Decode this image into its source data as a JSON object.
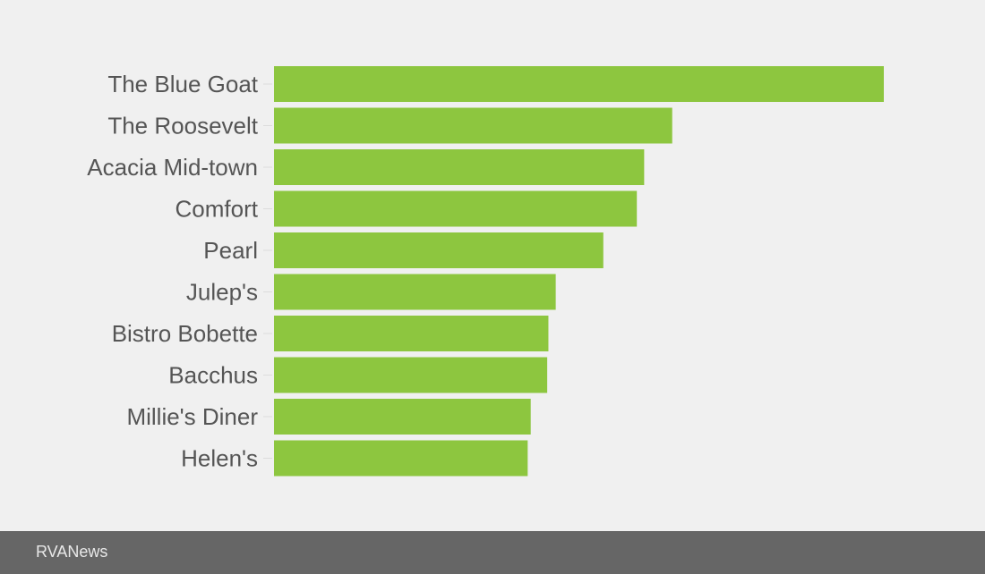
{
  "chart_data": {
    "type": "bar",
    "orientation": "horizontal",
    "categories": [
      "The Blue Goat",
      "The Roosevelt",
      "Acacia Mid-town",
      "Comfort",
      "Pearl",
      "Julep's",
      "Bistro Bobette",
      "Bacchus",
      "Millie's Diner",
      "Helen's"
    ],
    "values": [
      100,
      65.3,
      60.7,
      59.5,
      54.0,
      46.2,
      45.0,
      44.8,
      42.1,
      41.6
    ],
    "xlim": [
      0,
      100
    ],
    "grid": false,
    "legend": "none",
    "bar_color": "#8dc63f",
    "title": "",
    "xlabel": "",
    "ylabel": ""
  },
  "footer": {
    "brand": "RVANews"
  },
  "colors": {
    "background": "#f0f0f0",
    "footer_background": "#666666",
    "label_text": "#555555"
  }
}
